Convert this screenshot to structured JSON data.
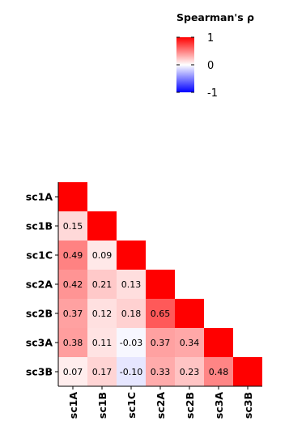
{
  "chart_data": {
    "type": "heatmap",
    "title": "",
    "xlabel": "",
    "ylabel": "",
    "variables": [
      "sc1A",
      "sc1B",
      "sc1C",
      "sc2A",
      "sc2B",
      "sc3A",
      "sc3B"
    ],
    "matrix": [
      [
        1.0,
        0.15,
        0.49,
        0.42,
        0.37,
        0.38,
        0.07
      ],
      [
        0.15,
        1.0,
        0.09,
        0.21,
        0.12,
        0.11,
        0.17
      ],
      [
        0.49,
        0.09,
        1.0,
        0.13,
        0.18,
        -0.03,
        -0.1
      ],
      [
        0.42,
        0.21,
        0.13,
        1.0,
        0.65,
        0.37,
        0.33
      ],
      [
        0.37,
        0.12,
        0.18,
        0.65,
        1.0,
        0.34,
        0.23
      ],
      [
        0.38,
        0.11,
        -0.03,
        0.37,
        0.34,
        1.0,
        0.48
      ],
      [
        0.07,
        0.17,
        -0.1,
        0.33,
        0.23,
        0.48,
        1.0
      ]
    ],
    "cell_labels": [
      [
        "",
        "",
        "",
        "",
        "",
        "",
        ""
      ],
      [
        "0.15",
        "",
        "",
        "",
        "",
        "",
        ""
      ],
      [
        "0.49",
        "0.09",
        "",
        "",
        "",
        "",
        ""
      ],
      [
        "0.42",
        "0.21",
        "0.13",
        "",
        "",
        "",
        ""
      ],
      [
        "0.37",
        "0.12",
        "0.18",
        "0.65",
        "",
        "",
        ""
      ],
      [
        "0.38",
        "0.11",
        "-0.03",
        "0.37",
        "0.34",
        "",
        ""
      ],
      [
        "0.07",
        "0.17",
        "-0.10",
        "0.33",
        "0.23",
        "0.48",
        ""
      ]
    ],
    "triangle": "lower",
    "color_scale": {
      "low": "#0000FF",
      "mid": "#FFFFFF",
      "high": "#FF0000",
      "limits": [
        -1,
        1
      ]
    },
    "legend": {
      "title": "Spearman's ρ",
      "ticks": [
        1,
        0,
        -1
      ],
      "tick_labels": [
        "1",
        "0",
        "-1"
      ],
      "placement": "top-right"
    },
    "grid": false
  }
}
